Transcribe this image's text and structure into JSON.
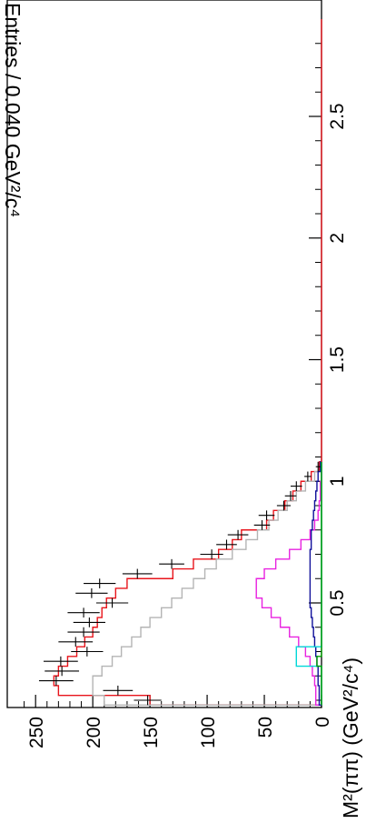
{
  "chart_data": {
    "type": "histogram",
    "orientation": "rotated-90-clockwise",
    "xlabel": "M²(ππ) (GeV²/c⁴)",
    "ylabel": "Entries / 0.040 GeV²/c⁴",
    "xlim": [
      0.08,
      2.9
    ],
    "ylim": [
      0,
      270
    ],
    "x_ticks": [
      "0.5",
      "1",
      "1.5",
      "2",
      "2.5"
    ],
    "y_ticks": [
      "0",
      "50",
      "100",
      "150",
      "200",
      "250"
    ],
    "bin_width": 0.04,
    "data": {
      "x": [
        0.1,
        0.14,
        0.18,
        0.22,
        0.26,
        0.3,
        0.34,
        0.38,
        0.42,
        0.46,
        0.5,
        0.54,
        0.58,
        0.62,
        0.66,
        0.7,
        0.74,
        0.78,
        0.82,
        0.86,
        0.9,
        0.94,
        0.98,
        1.02,
        1.06
      ],
      "y": [
        152,
        178,
        232,
        227,
        228,
        205,
        215,
        208,
        203,
        208,
        183,
        201,
        194,
        161,
        131,
        96,
        83,
        73,
        52,
        48,
        33,
        27,
        22,
        12,
        3
      ],
      "yerr": [
        12,
        13,
        15,
        15,
        15,
        14,
        15,
        14,
        14,
        14,
        14,
        14,
        14,
        13,
        11,
        10,
        9,
        9,
        7,
        7,
        6,
        5,
        5,
        3,
        2
      ]
    },
    "series": [
      {
        "color": "#e8141b",
        "values": [
          150,
          230,
          234,
          230,
          222,
          214,
          207,
          200,
          196,
          192,
          188,
          180,
          170,
          130,
          112,
          90,
          78,
          70,
          48,
          42,
          32,
          25,
          18,
          9,
          2
        ]
      },
      {
        "color": "#b4b4b4",
        "values": [
          190,
          200,
          200,
          192,
          183,
          175,
          166,
          158,
          150,
          140,
          131,
          122,
          112,
          102,
          92,
          78,
          66,
          56,
          46,
          38,
          30,
          22,
          14,
          6,
          1
        ]
      },
      {
        "color": "#e822e0",
        "values": [
          5,
          5,
          6,
          8,
          10,
          14,
          20,
          28,
          36,
          44,
          52,
          57,
          57,
          50,
          40,
          28,
          18,
          10,
          6,
          3,
          2,
          1,
          1,
          0,
          0
        ]
      },
      {
        "color": "#10109a",
        "values": [
          2,
          2,
          3,
          3,
          4,
          5,
          6,
          7,
          8,
          9,
          10,
          10,
          10,
          10,
          10,
          10,
          9,
          9,
          8,
          7,
          6,
          5,
          4,
          3,
          1
        ]
      },
      {
        "color": "#00d8d8",
        "values": [
          0,
          0,
          0,
          0,
          22,
          22,
          0,
          0,
          0,
          0,
          0,
          0,
          0,
          0,
          0,
          0,
          0,
          0,
          0,
          0,
          0,
          0,
          0,
          0,
          0
        ]
      },
      {
        "color": "#00a000",
        "values": [
          0,
          0,
          0,
          0,
          4,
          0,
          0,
          0,
          0,
          0,
          0,
          0,
          0,
          0,
          0,
          0,
          0,
          0,
          0,
          0,
          0,
          0,
          0,
          0,
          0
        ]
      }
    ]
  }
}
